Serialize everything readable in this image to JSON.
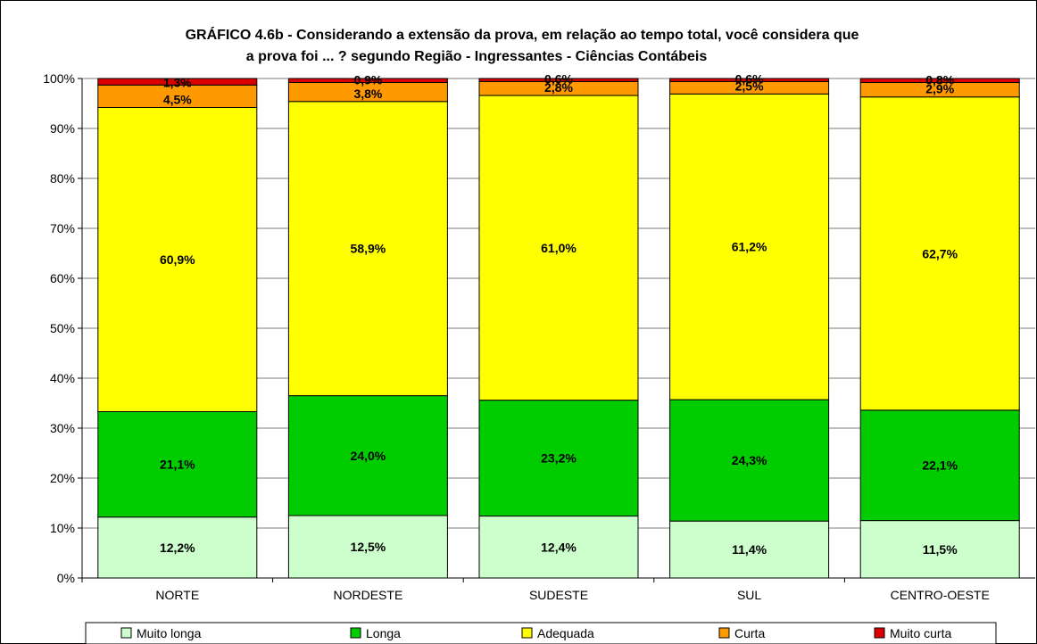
{
  "chart_data": {
    "type": "bar",
    "stacked": true,
    "percent": true,
    "title": "GRÁFICO 4.6b - Considerando a extensão da prova, em relação ao tempo total, você considera que",
    "subtitle": "a prova foi ... ? segundo Região  - Ingressantes - Ciências Contábeis",
    "xlabel": "",
    "ylabel": "",
    "ylim": [
      0,
      100
    ],
    "yticks": [
      "0%",
      "10%",
      "20%",
      "30%",
      "40%",
      "50%",
      "60%",
      "70%",
      "80%",
      "90%",
      "100%"
    ],
    "grid": true,
    "legend_position": "bottom",
    "categories": [
      "NORTE",
      "NORDESTE",
      "SUDESTE",
      "SUL",
      "CENTRO-OESTE"
    ],
    "series": [
      {
        "name": "Muito longa",
        "color": "#CCFFCC",
        "values": [
          12.2,
          12.5,
          12.4,
          11.4,
          11.5
        ],
        "labels": [
          "12,2%",
          "12,5%",
          "12,4%",
          "11,4%",
          "11,5%"
        ]
      },
      {
        "name": "Longa",
        "color": "#00CC00",
        "values": [
          21.1,
          24.0,
          23.2,
          24.3,
          22.1
        ],
        "labels": [
          "21,1%",
          "24,0%",
          "23,2%",
          "24,3%",
          "22,1%"
        ]
      },
      {
        "name": "Adequada",
        "color": "#FFFF00",
        "values": [
          60.9,
          58.9,
          61.0,
          61.2,
          62.7
        ],
        "labels": [
          "60,9%",
          "58,9%",
          "61,0%",
          "61,2%",
          "62,7%"
        ]
      },
      {
        "name": "Curta",
        "color": "#FF9900",
        "values": [
          4.5,
          3.8,
          2.8,
          2.5,
          2.9
        ],
        "labels": [
          "4,5%",
          "3,8%",
          "2,8%",
          "2,5%",
          "2,9%"
        ]
      },
      {
        "name": "Muito curta",
        "color": "#DD0000",
        "values": [
          1.3,
          0.9,
          0.6,
          0.6,
          0.8
        ],
        "labels": [
          "1,3%",
          "0,9%",
          "0,6%",
          "0,6%",
          "0,8%"
        ]
      }
    ]
  }
}
